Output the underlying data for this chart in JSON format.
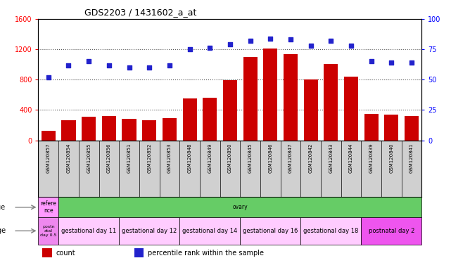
{
  "title": "GDS2203 / 1431602_a_at",
  "samples": [
    "GSM120857",
    "GSM120854",
    "GSM120855",
    "GSM120856",
    "GSM120851",
    "GSM120852",
    "GSM120853",
    "GSM120848",
    "GSM120849",
    "GSM120850",
    "GSM120845",
    "GSM120846",
    "GSM120847",
    "GSM120842",
    "GSM120843",
    "GSM120844",
    "GSM120839",
    "GSM120840",
    "GSM120841"
  ],
  "counts": [
    130,
    270,
    310,
    320,
    280,
    270,
    295,
    550,
    560,
    790,
    1100,
    1210,
    1140,
    800,
    1010,
    840,
    345,
    340,
    320
  ],
  "percentiles": [
    52,
    62,
    65,
    62,
    60,
    60,
    62,
    75,
    76,
    79,
    82,
    84,
    83,
    78,
    82,
    78,
    65,
    64,
    64
  ],
  "ylim_left": [
    0,
    1600
  ],
  "ylim_right": [
    0,
    100
  ],
  "yticks_left": [
    0,
    400,
    800,
    1200,
    1600
  ],
  "yticks_right": [
    0,
    25,
    50,
    75,
    100
  ],
  "bar_color": "#cc0000",
  "dot_color": "#2222cc",
  "chart_bg": "#ffffff",
  "xtick_bg": "#d0d0d0",
  "tissue_row": {
    "cells": [
      {
        "text": "refere\nnce",
        "color": "#ff99ff",
        "span": 1
      },
      {
        "text": "ovary",
        "color": "#66cc66",
        "span": 18
      }
    ]
  },
  "age_row": {
    "cells": [
      {
        "text": "postn\natal\nday 0.5",
        "color": "#ee88ee",
        "span": 1
      },
      {
        "text": "gestational day 11",
        "color": "#ffccff",
        "span": 3
      },
      {
        "text": "gestational day 12",
        "color": "#ffccff",
        "span": 3
      },
      {
        "text": "gestational day 14",
        "color": "#ffccff",
        "span": 3
      },
      {
        "text": "gestational day 16",
        "color": "#ffccff",
        "span": 3
      },
      {
        "text": "gestational day 18",
        "color": "#ffccff",
        "span": 3
      },
      {
        "text": "postnatal day 2",
        "color": "#ee55ee",
        "span": 3
      }
    ]
  },
  "legend_count_color": "#cc0000",
  "legend_pct_color": "#2222cc",
  "grid_color": "#555555",
  "dot_size": 14
}
